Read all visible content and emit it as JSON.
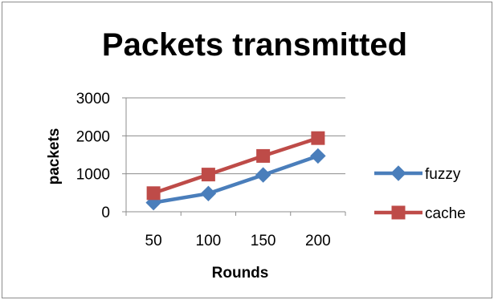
{
  "chart_data": {
    "type": "line",
    "title": "Packets transmitted",
    "xlabel": "Rounds",
    "ylabel": "packets",
    "categories": [
      "50",
      "100",
      "150",
      "200"
    ],
    "ylim": [
      0,
      3000
    ],
    "yticks": [
      "0",
      "1000",
      "2000",
      "3000"
    ],
    "grid": true,
    "legend": "right",
    "series": [
      {
        "name": "fuzzy",
        "values": [
          240,
          480,
          970,
          1470
        ],
        "color": "#4a7ebb",
        "marker": "diamond"
      },
      {
        "name": "cache",
        "values": [
          490,
          980,
          1470,
          1940
        ],
        "color": "#be4b48",
        "marker": "square"
      }
    ]
  }
}
